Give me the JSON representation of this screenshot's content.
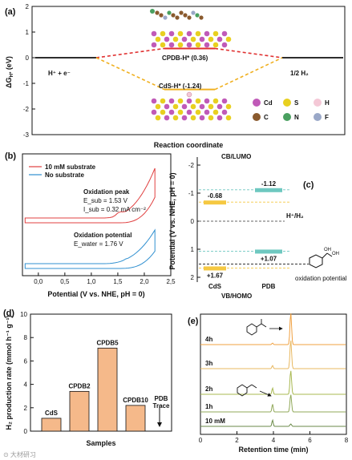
{
  "panel_a": {
    "label": "(a)",
    "ylabel": "ΔG",
    "ylabel_sub": "H*",
    "ylabel_unit": " (eV)",
    "xlabel": "Reaction coordinate",
    "left_state": "H⁺ + e⁻",
    "right_state": "1/2 H₂",
    "cpdb_label": "CPDB-H* (0.36)",
    "cds_label": "CdS-H* (-1.24)",
    "legend": [
      {
        "symbol": "Cd",
        "color": "#c05ab8"
      },
      {
        "symbol": "S",
        "color": "#e8d020"
      },
      {
        "symbol": "H",
        "color": "#f4c8d6"
      },
      {
        "symbol": "C",
        "color": "#8a5a2e"
      },
      {
        "symbol": "N",
        "color": "#4aa060"
      },
      {
        "symbol": "F",
        "color": "#9aa8c8"
      }
    ]
  },
  "panel_b": {
    "label": "(b)",
    "xlabel": "Potential (V vs. NHE, pH = 0)",
    "legend": [
      "10 mM substrate",
      "No substrate"
    ],
    "oxidation_peak_title": "Oxidation peak",
    "e_sub": "E_sub = 1.53 V",
    "i_sub": "I_sub = 0.32 mA cm⁻²",
    "oxidation_potential_title": "Oxidation potential",
    "e_water": "E_water = 1.76 V"
  },
  "panel_c": {
    "label": "(c)",
    "ylabel": "Potential (V vs. NHE, pH = 0)",
    "top_label": "CB/LUMO",
    "bottom_label": "VB/HOMO",
    "h_label": "H⁺/H₂",
    "ox_label": "oxidation potential"
  },
  "panel_d": {
    "label": "(d)",
    "ylabel": "H₂ production rate (mmol h⁻¹ g⁻¹)",
    "xlabel": "Samples",
    "trace_label": "PDB\nTrace"
  },
  "panel_e": {
    "label": "(e)",
    "xlabel": "Retention time (min)",
    "trace_labels": [
      "4h",
      "3h",
      "2h",
      "1h",
      "10 mM"
    ]
  },
  "watermark": "⊙ 大材研习",
  "chart_data": [
    {
      "type": "line",
      "panel": "a",
      "ylabel": "ΔG_H* (eV)",
      "xlabel": "Reaction coordinate",
      "ylim": [
        -3,
        2
      ],
      "yticks": [
        -3,
        -2,
        -1,
        0,
        1,
        2
      ],
      "series": [
        {
          "name": "CPDB-H*",
          "values": [
            0,
            0.36,
            0
          ],
          "color": "#e03030"
        },
        {
          "name": "CdS-H*",
          "values": [
            0,
            -1.24,
            0
          ],
          "color": "#f0b020"
        }
      ]
    },
    {
      "type": "line",
      "panel": "b",
      "xlabel": "Potential (V vs. NHE, pH = 0)",
      "xlim": [
        -0.3,
        2.5
      ],
      "xticks": [
        0.0,
        0.5,
        1.0,
        1.5,
        2.0,
        2.5
      ],
      "series": [
        {
          "name": "10 mM substrate",
          "color": "#e04040"
        },
        {
          "name": "No substrate",
          "color": "#3090d0"
        }
      ]
    },
    {
      "type": "bar",
      "panel": "c",
      "ylabel": "Potential (V vs. NHE, pH = 0)",
      "ylim": [
        -2,
        2
      ],
      "yticks": [
        -2,
        -1,
        0,
        1,
        2
      ],
      "categories": [
        "CdS",
        "PDB"
      ],
      "cb": [
        -0.68,
        -1.12
      ],
      "vb": [
        1.67,
        1.07
      ],
      "cb_labels": [
        "-0.68",
        "-1.12"
      ],
      "vb_labels": [
        "+1.67",
        "+1.07"
      ],
      "h_level": 0,
      "ox_level": 1.53
    },
    {
      "type": "bar",
      "panel": "d",
      "ylabel": "H₂ production rate (mmol h⁻¹ g⁻¹)",
      "xlabel": "Samples",
      "ylim": [
        0,
        10
      ],
      "yticks": [
        0,
        2,
        4,
        6,
        8,
        10
      ],
      "categories": [
        "CdS",
        "CPDB2",
        "CPDB5",
        "CPDB10",
        "PDB Trace"
      ],
      "values": [
        1.1,
        3.4,
        7.1,
        2.2,
        0
      ],
      "color": "#f5b98a"
    },
    {
      "type": "line",
      "panel": "e",
      "xlabel": "Retention time (min)",
      "xlim": [
        0,
        8
      ],
      "xticks": [
        0,
        2,
        4,
        6,
        8
      ],
      "series": [
        {
          "name": "4h",
          "color": "#f0a040"
        },
        {
          "name": "3h",
          "color": "#e8b860"
        },
        {
          "name": "2h",
          "color": "#a8b850"
        },
        {
          "name": "1h",
          "color": "#90a858"
        },
        {
          "name": "10 mM",
          "color": "#6a8a48"
        }
      ]
    }
  ]
}
